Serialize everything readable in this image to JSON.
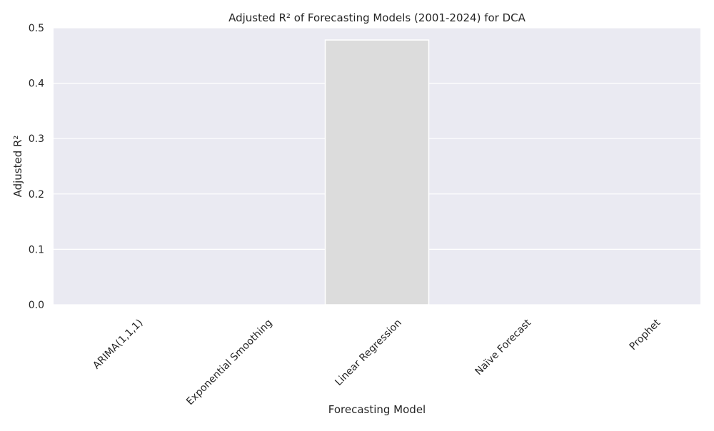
{
  "chart_data": {
    "type": "bar",
    "title": "Adjusted R² of Forecasting Models (2001-2024) for DCA",
    "xlabel": "Forecasting Model",
    "ylabel": "Adjusted R²",
    "categories": [
      "ARIMA(1,1,1)",
      "Exponential Smoothing",
      "Linear Regression",
      "Naïve Forecast",
      "Prophet"
    ],
    "values": [
      0,
      0,
      0.478,
      0,
      0
    ],
    "ylim": [
      0,
      0.5
    ],
    "yticks": [
      0.0,
      0.1,
      0.2,
      0.3,
      0.4,
      0.5
    ],
    "ytick_labels": [
      "0.0",
      "0.1",
      "0.2",
      "0.3",
      "0.4",
      "0.5"
    ],
    "grid": true,
    "colors": {
      "plot_background": "#eaeaf2",
      "grid": "#ffffff",
      "bar_fill": "#dcdcdc",
      "bar_edge": "#ffffff",
      "text": "#262626"
    }
  }
}
